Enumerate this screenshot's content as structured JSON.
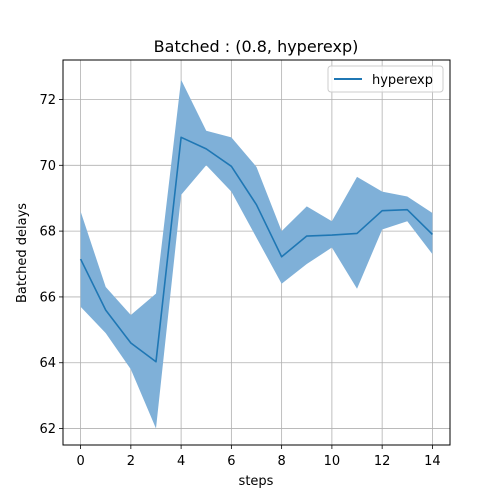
{
  "chart_data": {
    "type": "line",
    "title": "Batched : (0.8, hyperexp)",
    "xlabel": "steps",
    "ylabel": "Batched delays",
    "xlim": [
      -0.7,
      14.7
    ],
    "ylim": [
      61.5,
      73.2
    ],
    "x_ticks": [
      0,
      2,
      4,
      6,
      8,
      10,
      12,
      14
    ],
    "y_ticks": [
      62,
      64,
      66,
      68,
      70,
      72
    ],
    "grid": true,
    "legend_position": "upper right",
    "series": [
      {
        "name": "hyperexp",
        "color": "#1f77b4",
        "band_color": "#7fb0d8",
        "x": [
          0,
          1,
          2,
          3,
          4,
          5,
          6,
          7,
          8,
          9,
          10,
          11,
          12,
          13,
          14
        ],
        "mean": [
          67.15,
          65.6,
          64.6,
          64.03,
          70.85,
          70.5,
          69.97,
          68.8,
          67.22,
          67.85,
          67.88,
          67.93,
          68.62,
          68.65,
          67.9
        ],
        "lower": [
          65.7,
          64.9,
          63.8,
          62.0,
          69.1,
          70.0,
          69.2,
          67.8,
          66.4,
          67.0,
          67.5,
          66.25,
          68.05,
          68.3,
          67.3
        ],
        "upper": [
          68.6,
          66.3,
          65.45,
          66.1,
          72.6,
          71.05,
          70.85,
          69.95,
          68.0,
          68.75,
          68.3,
          69.65,
          69.2,
          69.05,
          68.55
        ]
      }
    ]
  }
}
